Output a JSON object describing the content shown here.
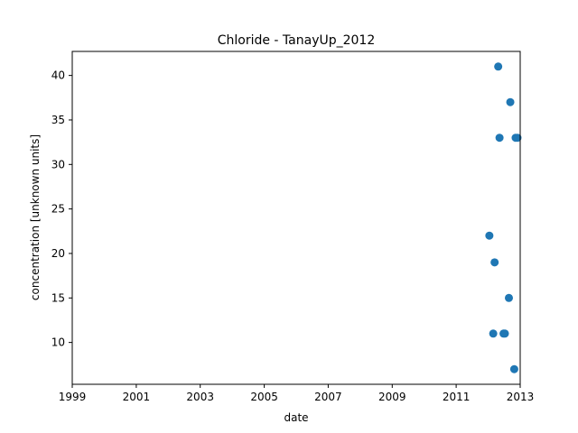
{
  "chart_data": {
    "type": "scatter",
    "title": "Chloride - TanayUp_2012",
    "xlabel": "date",
    "ylabel": "concentration [unknown units]",
    "x_axis_type": "date",
    "xlim": [
      "1999-01-01",
      "2013-01-01"
    ],
    "ylim": [
      5.3,
      42.7
    ],
    "x_ticks": [
      "1999",
      "2001",
      "2003",
      "2005",
      "2007",
      "2009",
      "2011",
      "2013"
    ],
    "y_ticks": [
      10,
      15,
      20,
      25,
      30,
      35,
      40
    ],
    "grid": false,
    "legend": "none",
    "marker_color": "#1f77b4",
    "series": [
      {
        "x": [
          "2012-01-15",
          "2012-02-28",
          "2012-03-15",
          "2012-04-25",
          "2012-05-10",
          "2012-06-25",
          "2012-07-10",
          "2012-08-25",
          "2012-09-10",
          "2012-10-25",
          "2012-11-10",
          "2012-12-01"
        ],
        "y": [
          22,
          11,
          19,
          41,
          33,
          11,
          11,
          15,
          37,
          7,
          33,
          33
        ]
      }
    ]
  }
}
